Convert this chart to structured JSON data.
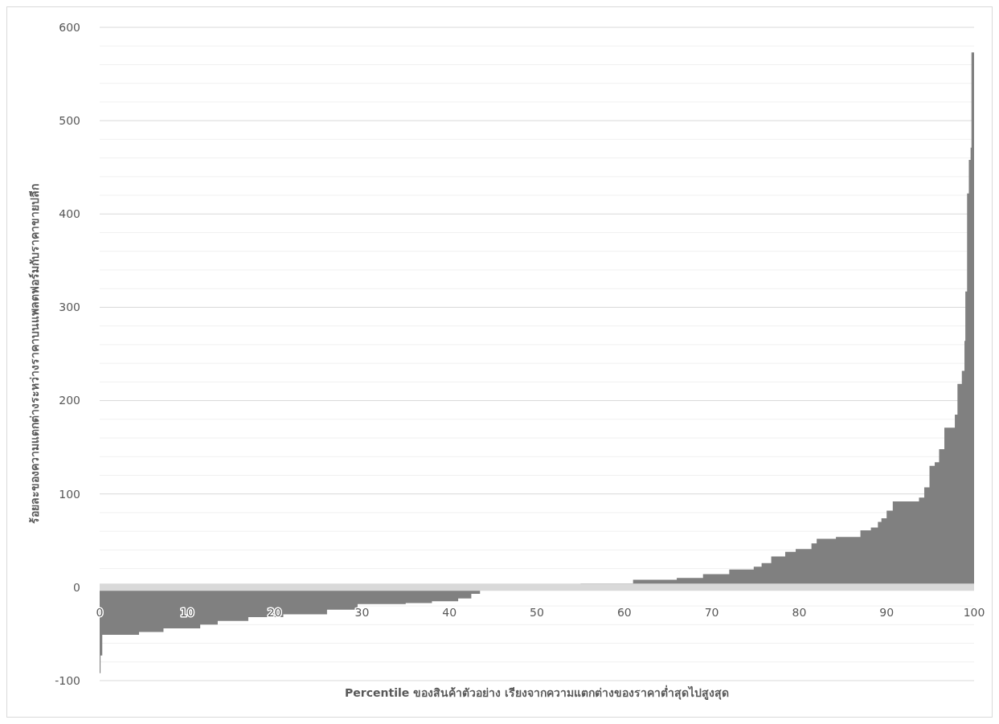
{
  "chart_data": {
    "type": "area",
    "xlabel": "Percentile ของสินค้าตัวอย่าง เรียงจากความแตกต่างของราคาต่ำสุดไปสูงสุด",
    "ylabel": "ร้อยละของความแตกต่างระหว่างราคาบนแพลตฟอร์มกับราคาขายปลีก",
    "x": [
      0,
      0.1,
      0.3,
      4.5,
      7.3,
      11.5,
      13.5,
      17,
      21,
      26,
      29.5,
      35,
      38,
      41,
      42.5,
      43.5,
      51,
      55,
      61,
      66,
      69,
      72,
      74.8,
      75.7,
      76.8,
      78.4,
      79.6,
      81.4,
      82,
      84.2,
      87,
      88.2,
      89,
      89.4,
      90,
      90.7,
      93.7,
      94.3,
      94.9,
      95.5,
      96,
      96.6,
      97.8,
      98.1,
      98.6,
      98.9,
      99,
      99.2,
      99.4,
      99.6,
      99.7,
      100
    ],
    "series": [
      {
        "color": "#808080",
        "values": [
          -92,
          -73,
          -51,
          -48,
          -44,
          -40,
          -36,
          -32,
          -29,
          -24,
          -18,
          -17,
          -15,
          -12,
          -7,
          0,
          2,
          4,
          8,
          10,
          14,
          19,
          22,
          26,
          33,
          38,
          41,
          47,
          52,
          54,
          61,
          64,
          70,
          74,
          82,
          92,
          96,
          107,
          130,
          134,
          148,
          171,
          185,
          218,
          232,
          264,
          317,
          422,
          458,
          471,
          573,
          573
        ]
      }
    ],
    "xlim": [
      0,
      100
    ],
    "xticks": [
      0,
      10,
      20,
      30,
      40,
      50,
      60,
      70,
      80,
      90,
      100
    ],
    "ylim": [
      -100,
      600
    ],
    "yticks": [
      -100,
      {
        "value": -80,
        "label": null
      },
      {
        "value": -60,
        "label": null
      },
      {
        "value": -40,
        "label": null
      },
      {
        "value": -20,
        "label": null
      },
      0,
      {
        "value": 20,
        "label": null
      },
      {
        "value": 40,
        "label": null
      },
      {
        "value": 60,
        "label": null
      },
      {
        "value": 80,
        "label": null
      },
      100,
      {
        "value": 120,
        "label": null
      },
      {
        "value": 140,
        "label": null
      },
      {
        "value": 160,
        "label": null
      },
      {
        "value": 180,
        "label": null
      },
      200,
      {
        "value": 220,
        "label": null
      },
      {
        "value": 240,
        "label": null
      },
      {
        "value": 260,
        "label": null
      },
      {
        "value": 280,
        "label": null
      },
      300,
      {
        "value": 320,
        "label": null
      },
      {
        "value": 340,
        "label": null
      },
      {
        "value": 360,
        "label": null
      },
      {
        "value": 380,
        "label": null
      },
      400,
      {
        "value": 420,
        "label": null
      },
      {
        "value": 440,
        "label": null
      },
      {
        "value": 460,
        "label": null
      },
      {
        "value": 480,
        "label": null
      },
      500,
      {
        "value": 520,
        "label": null
      },
      {
        "value": 540,
        "label": null
      },
      {
        "value": 560,
        "label": null
      },
      {
        "value": 580,
        "label": null
      },
      600
    ],
    "grid": true
  }
}
